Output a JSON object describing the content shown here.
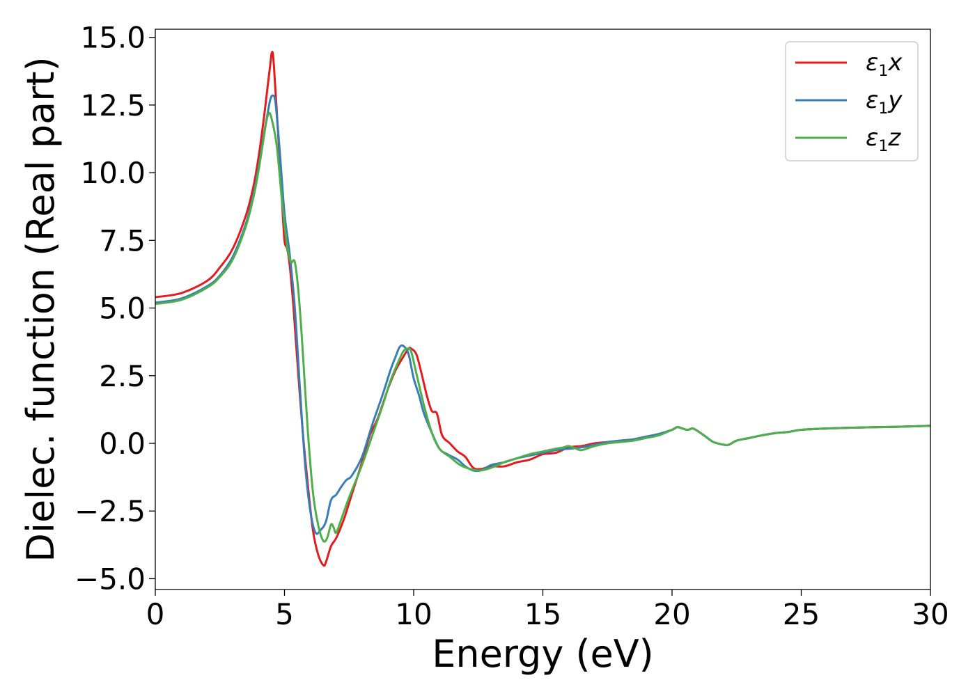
{
  "chart_data": {
    "type": "line",
    "xlabel": "Energy (eV)",
    "ylabel": "Dielec. function (Real part)",
    "xlim": [
      0,
      30
    ],
    "ylim": [
      -5.4,
      15.3
    ],
    "xticks": [
      0,
      5,
      10,
      15,
      20,
      25,
      30
    ],
    "xtick_labels": [
      "0",
      "5",
      "10",
      "15",
      "20",
      "25",
      "30"
    ],
    "yticks": [
      -5.0,
      -2.5,
      0.0,
      2.5,
      5.0,
      7.5,
      10.0,
      12.5,
      15.0
    ],
    "ytick_labels": [
      "−5.0",
      "−2.5",
      "0.0",
      "2.5",
      "5.0",
      "7.5",
      "10.0",
      "12.5",
      "15.0"
    ],
    "grid": false,
    "legend_position": "top-right",
    "series": [
      {
        "name": "ε₁x",
        "legend_main": "ε",
        "legend_sub": "1",
        "legend_var": "x",
        "color": "#e41a1c",
        "x": [
          0,
          1,
          2,
          2.5,
          3,
          3.5,
          3.8,
          4.0,
          4.2,
          4.35,
          4.45,
          4.5,
          4.55,
          4.6,
          4.75,
          4.9,
          5.0,
          5.1,
          5.2,
          5.35,
          5.5,
          5.7,
          5.9,
          6.1,
          6.3,
          6.5,
          6.6,
          6.8,
          7.0,
          7.3,
          7.6,
          8.0,
          8.3,
          8.6,
          9.0,
          9.3,
          9.6,
          9.8,
          9.9,
          10.1,
          10.3,
          10.5,
          10.7,
          10.9,
          11.1,
          11.4,
          11.7,
          12.0,
          12.3,
          12.6,
          13.0,
          13.5,
          14.0,
          14.5,
          15.0,
          15.5,
          16.0,
          16.5,
          17.0,
          17.5,
          18.0,
          18.5,
          19.0,
          19.5,
          20.0,
          20.2,
          20.4,
          20.6,
          20.8,
          21.0,
          21.3,
          21.6,
          22.0,
          22.2,
          22.5,
          23.0,
          23.5,
          24.0,
          24.5,
          25.0,
          26.0,
          27.0,
          28.0,
          29.0,
          30.0
        ],
        "y": [
          5.4,
          5.55,
          6.0,
          6.5,
          7.2,
          8.4,
          9.5,
          10.6,
          12.0,
          13.2,
          14.0,
          14.4,
          14.4,
          13.8,
          11.5,
          9.0,
          7.5,
          7.2,
          6.6,
          5.0,
          3.0,
          0.5,
          -1.5,
          -3.2,
          -4.1,
          -4.5,
          -4.4,
          -3.8,
          -3.5,
          -2.8,
          -1.9,
          -0.7,
          0.3,
          0.9,
          2.0,
          2.7,
          3.2,
          3.5,
          3.5,
          3.3,
          2.6,
          1.8,
          1.2,
          1.1,
          0.3,
          0.0,
          -0.3,
          -0.5,
          -0.9,
          -0.95,
          -0.85,
          -0.85,
          -0.7,
          -0.6,
          -0.4,
          -0.35,
          -0.15,
          -0.1,
          0.0,
          0.05,
          0.1,
          0.15,
          0.25,
          0.35,
          0.5,
          0.6,
          0.55,
          0.5,
          0.55,
          0.45,
          0.25,
          0.05,
          -0.05,
          -0.05,
          0.1,
          0.2,
          0.3,
          0.38,
          0.42,
          0.5,
          0.55,
          0.58,
          0.6,
          0.62,
          0.65
        ]
      },
      {
        "name": "ε₁y",
        "legend_main": "ε",
        "legend_sub": "1",
        "legend_var": "y",
        "color": "#377eb8",
        "x": [
          0,
          1,
          2,
          2.5,
          3,
          3.5,
          3.8,
          4.0,
          4.2,
          4.35,
          4.45,
          4.55,
          4.65,
          4.8,
          5.0,
          5.2,
          5.4,
          5.6,
          5.8,
          6.0,
          6.2,
          6.4,
          6.6,
          6.8,
          7.0,
          7.2,
          7.4,
          7.6,
          8.0,
          8.4,
          8.8,
          9.1,
          9.3,
          9.45,
          9.6,
          9.8,
          10.0,
          10.2,
          10.4,
          10.7,
          11.0,
          11.3,
          11.7,
          12.0,
          12.3,
          12.6,
          13.0,
          13.5,
          14.0,
          14.5,
          15.0,
          15.5,
          16.0,
          16.5,
          17.0,
          17.5,
          18.0,
          18.5,
          19.0,
          19.5,
          20.0,
          20.2,
          20.4,
          20.6,
          20.8,
          21.0,
          21.3,
          21.6,
          22.0,
          22.2,
          22.5,
          23.0,
          23.5,
          24.0,
          24.5,
          25.0,
          26.0,
          27.0,
          28.0,
          29.0,
          30.0
        ],
        "y": [
          5.2,
          5.35,
          5.8,
          6.2,
          6.9,
          8.1,
          9.2,
          10.2,
          11.4,
          12.2,
          12.7,
          12.85,
          12.6,
          11.0,
          8.5,
          7.0,
          5.0,
          2.0,
          -0.8,
          -2.5,
          -3.3,
          -3.2,
          -2.9,
          -2.1,
          -1.9,
          -1.6,
          -1.35,
          -1.2,
          -0.5,
          0.7,
          1.8,
          2.7,
          3.2,
          3.55,
          3.6,
          3.3,
          2.4,
          1.8,
          1.1,
          0.4,
          -0.2,
          -0.4,
          -0.6,
          -0.85,
          -1.0,
          -1.0,
          -0.8,
          -0.7,
          -0.55,
          -0.45,
          -0.35,
          -0.25,
          -0.2,
          -0.15,
          -0.05,
          0.05,
          0.1,
          0.15,
          0.25,
          0.35,
          0.5,
          0.6,
          0.55,
          0.5,
          0.55,
          0.45,
          0.25,
          0.05,
          -0.05,
          -0.05,
          0.1,
          0.2,
          0.3,
          0.38,
          0.42,
          0.5,
          0.55,
          0.58,
          0.6,
          0.62,
          0.65
        ]
      },
      {
        "name": "ε₁z",
        "legend_main": "ε",
        "legend_sub": "1",
        "legend_var": "z",
        "color": "#4daf4a",
        "x": [
          0,
          1,
          2,
          2.5,
          3,
          3.5,
          3.8,
          4.0,
          4.15,
          4.3,
          4.4,
          4.5,
          4.7,
          4.9,
          5.1,
          5.25,
          5.4,
          5.55,
          5.7,
          5.9,
          6.1,
          6.3,
          6.5,
          6.65,
          6.8,
          6.9,
          7.0,
          7.2,
          7.5,
          8.0,
          8.4,
          8.8,
          9.1,
          9.4,
          9.6,
          9.75,
          9.9,
          10.1,
          10.4,
          10.7,
          11.0,
          11.4,
          11.8,
          12.2,
          12.6,
          13.0,
          13.5,
          14.0,
          14.5,
          15.0,
          15.5,
          15.8,
          16.0,
          16.3,
          16.5,
          17.0,
          17.5,
          18.0,
          18.5,
          19.0,
          19.5,
          20.0,
          20.2,
          20.4,
          20.6,
          20.8,
          21.0,
          21.3,
          21.6,
          22.0,
          22.2,
          22.5,
          23.0,
          23.5,
          24.0,
          24.5,
          25.0,
          26.0,
          27.0,
          28.0,
          29.0,
          30.0
        ],
        "y": [
          5.15,
          5.3,
          5.75,
          6.15,
          6.8,
          8.0,
          9.1,
          10.1,
          11.0,
          11.9,
          12.2,
          12.0,
          11.0,
          9.0,
          7.3,
          6.7,
          6.7,
          5.5,
          3.5,
          0.5,
          -1.8,
          -3.0,
          -3.6,
          -3.5,
          -3.0,
          -3.1,
          -3.3,
          -2.8,
          -2.0,
          -0.8,
          0.3,
          1.4,
          2.3,
          3.0,
          3.4,
          3.5,
          3.4,
          2.6,
          1.4,
          0.4,
          -0.2,
          -0.5,
          -0.8,
          -0.95,
          -1.0,
          -0.9,
          -0.7,
          -0.55,
          -0.4,
          -0.3,
          -0.2,
          -0.15,
          -0.1,
          -0.2,
          -0.25,
          -0.1,
          0.0,
          0.05,
          0.1,
          0.2,
          0.3,
          0.5,
          0.6,
          0.55,
          0.5,
          0.55,
          0.45,
          0.25,
          0.05,
          -0.05,
          -0.05,
          0.1,
          0.2,
          0.3,
          0.38,
          0.42,
          0.5,
          0.55,
          0.58,
          0.6,
          0.62,
          0.65
        ]
      }
    ]
  }
}
